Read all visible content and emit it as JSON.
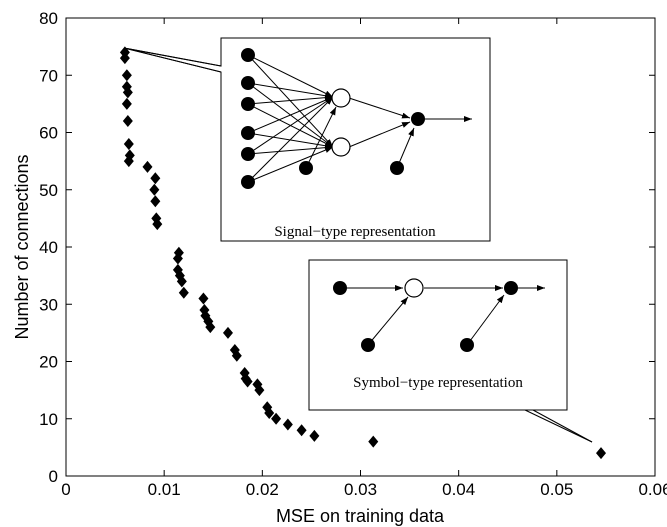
{
  "chart_data": {
    "type": "scatter",
    "xlabel": "MSE on training data",
    "ylabel": "Number of connections",
    "xlim": [
      0,
      0.06
    ],
    "ylim": [
      0,
      80
    ],
    "xticks": [
      "0",
      "0.01",
      "0.02",
      "0.03",
      "0.04",
      "0.05",
      "0.06"
    ],
    "yticks": [
      "0",
      "10",
      "20",
      "30",
      "40",
      "50",
      "60",
      "70",
      "80"
    ],
    "grid": false,
    "marker": "diamond",
    "marker_color": "#000000",
    "points": [
      {
        "x": 0.006,
        "y": 74
      },
      {
        "x": 0.006,
        "y": 73
      },
      {
        "x": 0.0062,
        "y": 70
      },
      {
        "x": 0.0062,
        "y": 68
      },
      {
        "x": 0.0063,
        "y": 67
      },
      {
        "x": 0.0062,
        "y": 65
      },
      {
        "x": 0.0063,
        "y": 62
      },
      {
        "x": 0.0064,
        "y": 58
      },
      {
        "x": 0.0065,
        "y": 56
      },
      {
        "x": 0.0064,
        "y": 55
      },
      {
        "x": 0.0083,
        "y": 54
      },
      {
        "x": 0.0091,
        "y": 52
      },
      {
        "x": 0.009,
        "y": 50
      },
      {
        "x": 0.0091,
        "y": 48
      },
      {
        "x": 0.0092,
        "y": 45
      },
      {
        "x": 0.0093,
        "y": 44
      },
      {
        "x": 0.0115,
        "y": 39
      },
      {
        "x": 0.0114,
        "y": 38
      },
      {
        "x": 0.0114,
        "y": 36
      },
      {
        "x": 0.0116,
        "y": 35
      },
      {
        "x": 0.0118,
        "y": 34
      },
      {
        "x": 0.012,
        "y": 32
      },
      {
        "x": 0.014,
        "y": 31
      },
      {
        "x": 0.0141,
        "y": 29
      },
      {
        "x": 0.0142,
        "y": 28
      },
      {
        "x": 0.0145,
        "y": 27
      },
      {
        "x": 0.0147,
        "y": 26
      },
      {
        "x": 0.0165,
        "y": 25
      },
      {
        "x": 0.0172,
        "y": 22
      },
      {
        "x": 0.0174,
        "y": 21
      },
      {
        "x": 0.0182,
        "y": 18
      },
      {
        "x": 0.0183,
        "y": 17
      },
      {
        "x": 0.0185,
        "y": 16.5
      },
      {
        "x": 0.0195,
        "y": 16
      },
      {
        "x": 0.0197,
        "y": 15
      },
      {
        "x": 0.0205,
        "y": 12
      },
      {
        "x": 0.0207,
        "y": 11
      },
      {
        "x": 0.0214,
        "y": 10
      },
      {
        "x": 0.0226,
        "y": 9
      },
      {
        "x": 0.024,
        "y": 8
      },
      {
        "x": 0.0253,
        "y": 7
      },
      {
        "x": 0.0313,
        "y": 6
      },
      {
        "x": 0.0545,
        "y": 4
      }
    ],
    "annotations": [
      {
        "text": "Signal−type representation",
        "points_to": {
          "x": 0.006,
          "y": 74
        }
      },
      {
        "text": "Symbol−type representation",
        "points_to": {
          "x": 0.0545,
          "y": 4
        }
      }
    ]
  }
}
